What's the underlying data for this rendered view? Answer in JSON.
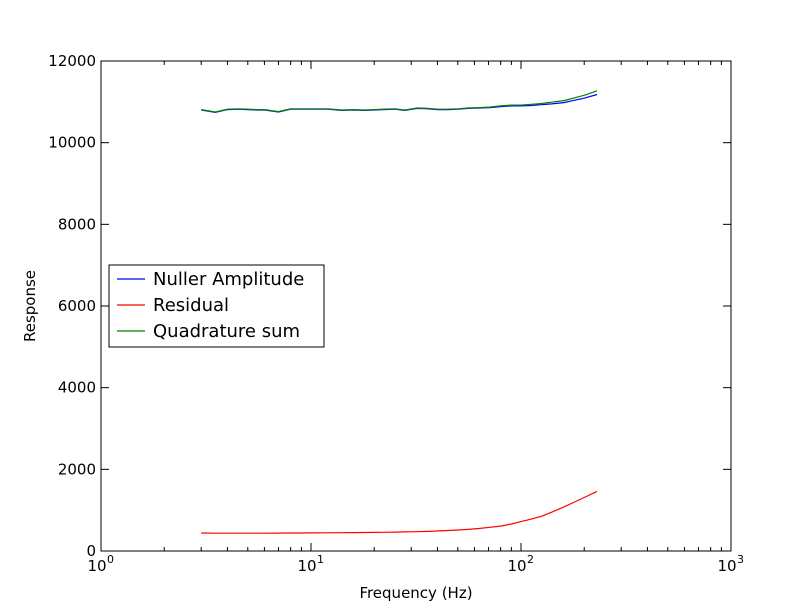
{
  "chart_data": {
    "type": "line",
    "title": "",
    "xlabel": "Frequency (Hz)",
    "ylabel": "Response",
    "xscale": "log",
    "xlim": [
      1,
      1000
    ],
    "ylim": [
      0,
      12000
    ],
    "grid": false,
    "legend_position": "center-left",
    "x_ticks": [
      {
        "value": 1,
        "base": "10",
        "exp": "0"
      },
      {
        "value": 10,
        "base": "10",
        "exp": "1"
      },
      {
        "value": 100,
        "base": "10",
        "exp": "2"
      },
      {
        "value": 1000,
        "base": "10",
        "exp": "3"
      }
    ],
    "y_ticks": [
      {
        "value": 0,
        "label": "0"
      },
      {
        "value": 2000,
        "label": "2000"
      },
      {
        "value": 4000,
        "label": "4000"
      },
      {
        "value": 6000,
        "label": "6000"
      },
      {
        "value": 8000,
        "label": "8000"
      },
      {
        "value": 10000,
        "label": "10000"
      },
      {
        "value": 12000,
        "label": "12000"
      }
    ],
    "x": [
      3.0,
      3.5,
      4.0,
      4.5,
      5.0,
      5.5,
      6.0,
      7.0,
      8.0,
      9.0,
      10,
      12,
      14,
      16,
      18,
      20,
      22,
      25,
      28,
      32,
      36,
      40,
      45,
      50,
      56,
      63,
      71,
      80,
      90,
      100,
      112,
      125,
      140,
      160,
      180,
      200,
      230
    ],
    "series": [
      {
        "name": "Nuller Amplitude",
        "color": "#0000ff",
        "values": [
          10800,
          10740,
          10810,
          10820,
          10810,
          10800,
          10800,
          10750,
          10820,
          10820,
          10820,
          10820,
          10790,
          10800,
          10790,
          10800,
          10810,
          10820,
          10790,
          10840,
          10830,
          10810,
          10810,
          10820,
          10840,
          10850,
          10860,
          10880,
          10900,
          10900,
          10910,
          10930,
          10950,
          10980,
          11040,
          11090,
          11180
        ]
      },
      {
        "name": "Residual",
        "color": "#ff0000",
        "values": [
          440,
          435,
          435,
          435,
          435,
          435,
          437,
          438,
          440,
          442,
          443,
          445,
          447,
          450,
          452,
          455,
          458,
          462,
          467,
          473,
          480,
          490,
          502,
          515,
          530,
          550,
          580,
          610,
          660,
          720,
          780,
          850,
          950,
          1080,
          1200,
          1310,
          1460
        ]
      },
      {
        "name": "Quadrature sum",
        "color": "#008000",
        "values": [
          10810,
          10750,
          10820,
          10830,
          10820,
          10810,
          10810,
          10760,
          10830,
          10830,
          10830,
          10830,
          10800,
          10810,
          10800,
          10810,
          10820,
          10830,
          10800,
          10850,
          10840,
          10820,
          10820,
          10830,
          10850,
          10860,
          10870,
          10900,
          10920,
          10920,
          10940,
          10960,
          10990,
          11030,
          11100,
          11160,
          11270
        ]
      }
    ]
  }
}
